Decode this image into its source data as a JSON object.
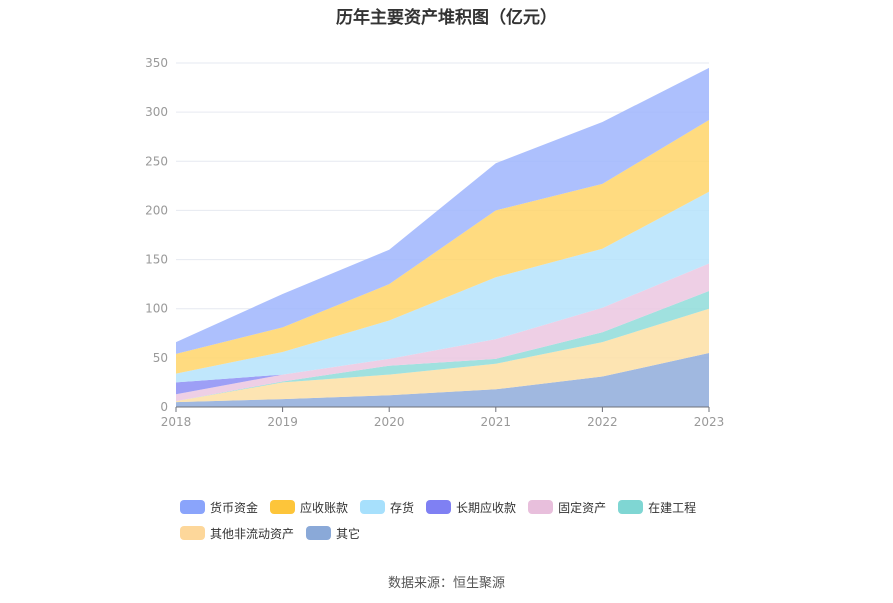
{
  "chart_data": {
    "type": "area",
    "stacked": true,
    "title": "历年主要资产堆积图（亿元）",
    "categories": [
      "2018",
      "2019",
      "2020",
      "2021",
      "2022",
      "2023"
    ],
    "ylim": [
      0,
      350
    ],
    "yticks": [
      0,
      50,
      100,
      150,
      200,
      250,
      300,
      350
    ],
    "grid": true,
    "legend_position": "bottom",
    "series": [
      {
        "name": "其它",
        "color": "#8facdb",
        "values": [
          5,
          8,
          12,
          18,
          31,
          55
        ]
      },
      {
        "name": "其他非流动资产",
        "color": "#fddfa4",
        "values": [
          1,
          17,
          21,
          26,
          35,
          45
        ]
      },
      {
        "name": "在建工程",
        "color": "#8fdcd9",
        "values": [
          0,
          1,
          9,
          5,
          10,
          18
        ]
      },
      {
        "name": "固定资产",
        "color": "#ebc7e0",
        "values": [
          7,
          7,
          7,
          20,
          25,
          28
        ]
      },
      {
        "name": "长期应收款",
        "color": "#8c8ef5",
        "values": [
          12,
          0,
          0,
          0,
          0,
          0
        ]
      },
      {
        "name": "存货",
        "color": "#b5e3fb",
        "values": [
          9,
          23,
          39,
          63,
          60,
          73
        ]
      },
      {
        "name": "应收账款",
        "color": "#ffd56a",
        "values": [
          20,
          25,
          37,
          68,
          66,
          73
        ]
      },
      {
        "name": "货币资金",
        "color": "#9fb5fd",
        "values": [
          12,
          34,
          35,
          48,
          63,
          53
        ]
      }
    ]
  },
  "legend": {
    "row1": [
      {
        "label": "货币资金",
        "color": "#8aa4fb"
      },
      {
        "label": "应收账款",
        "color": "#fdc53a"
      },
      {
        "label": "存货",
        "color": "#a7e0fc"
      },
      {
        "label": "长期应收款",
        "color": "#7f80f3"
      },
      {
        "label": "固定资产",
        "color": "#e8bfdc"
      },
      {
        "label": "在建工程",
        "color": "#7fd6d3"
      }
    ],
    "row2": [
      {
        "label": "其他非流动资产",
        "color": "#fdd79a"
      },
      {
        "label": "其它",
        "color": "#8aa9d8"
      }
    ]
  },
  "source": "数据来源：恒生聚源"
}
